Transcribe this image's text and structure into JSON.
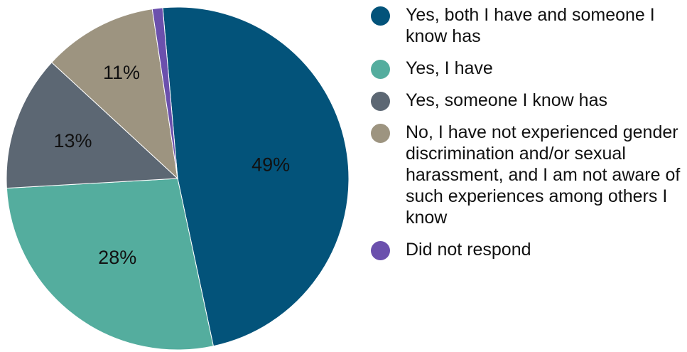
{
  "chart_data": {
    "type": "pie",
    "title": "",
    "start_angle_deg": -5,
    "direction": "clockwise",
    "legend_position": "right",
    "slices": [
      {
        "name": "Yes, both I have and someone I know has",
        "value": 49,
        "label": "49%",
        "color": "#03537a"
      },
      {
        "name": "Yes, I have",
        "value": 28,
        "label": "28%",
        "color": "#54ad9e"
      },
      {
        "name": "Yes, someone I know has",
        "value": 13,
        "label": "13%",
        "color": "#5c6773"
      },
      {
        "name": "No, I have not experienced gender discrimination and/or sexual harassment, and I am not aware of such experiences among others I know",
        "value": 11,
        "label": "11%",
        "color": "#9d9480"
      },
      {
        "name": "Did not respond",
        "value": 1,
        "label": "",
        "color": "#6b50ad"
      }
    ]
  }
}
